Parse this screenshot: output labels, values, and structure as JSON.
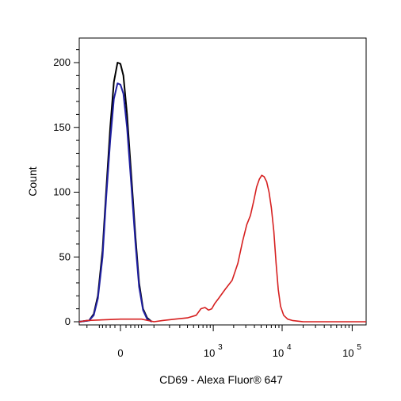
{
  "chart_data": {
    "type": "line",
    "title": "",
    "xlabel": "CD69 - Alexa Fluor® 647",
    "ylabel": "Count",
    "x_scale": "biexponential",
    "x_ticks": [
      {
        "value": 0,
        "base": "0",
        "exp": ""
      },
      {
        "value": 1000,
        "base": "10",
        "exp": "3"
      },
      {
        "value": 10000,
        "base": "10",
        "exp": "4"
      },
      {
        "value": 100000,
        "base": "10",
        "exp": "5"
      }
    ],
    "y_ticks": [
      {
        "value": 0,
        "label": "0"
      },
      {
        "value": 50,
        "label": "50"
      },
      {
        "value": 100,
        "label": "100"
      },
      {
        "value": 150,
        "label": "150"
      },
      {
        "value": 200,
        "label": "200"
      }
    ],
    "ylim": [
      0,
      220
    ],
    "grid": false,
    "legend": "none",
    "colors": {
      "isotype": "#000000",
      "unstained": "#1f1fa0",
      "stained": "#d62020"
    },
    "series": [
      {
        "color": "#000000",
        "points": [
          [
            -150,
            0
          ],
          [
            -90,
            1
          ],
          [
            -70,
            6
          ],
          [
            -55,
            20
          ],
          [
            -40,
            55
          ],
          [
            -30,
            100
          ],
          [
            -20,
            150
          ],
          [
            -12,
            185
          ],
          [
            -5,
            200
          ],
          [
            0,
            199
          ],
          [
            5,
            190
          ],
          [
            12,
            160
          ],
          [
            22,
            110
          ],
          [
            32,
            65
          ],
          [
            42,
            30
          ],
          [
            55,
            10
          ],
          [
            70,
            3
          ],
          [
            90,
            0
          ]
        ]
      },
      {
        "color": "#1f1fa0",
        "points": [
          [
            -150,
            0
          ],
          [
            -90,
            1
          ],
          [
            -70,
            5
          ],
          [
            -55,
            18
          ],
          [
            -40,
            50
          ],
          [
            -30,
            95
          ],
          [
            -20,
            140
          ],
          [
            -12,
            172
          ],
          [
            -5,
            184
          ],
          [
            0,
            183
          ],
          [
            5,
            176
          ],
          [
            12,
            150
          ],
          [
            22,
            103
          ],
          [
            32,
            60
          ],
          [
            42,
            27
          ],
          [
            55,
            9
          ],
          [
            70,
            2
          ],
          [
            90,
            0
          ]
        ]
      },
      {
        "color": "#d62020",
        "points": [
          [
            -200,
            0
          ],
          [
            -100,
            1
          ],
          [
            0,
            2
          ],
          [
            50,
            2
          ],
          [
            100,
            0
          ],
          [
            150,
            1
          ],
          [
            250,
            2
          ],
          [
            400,
            3
          ],
          [
            550,
            5
          ],
          [
            650,
            10
          ],
          [
            750,
            11
          ],
          [
            850,
            9
          ],
          [
            950,
            10
          ],
          [
            1050,
            14
          ],
          [
            1200,
            18
          ],
          [
            1500,
            25
          ],
          [
            1900,
            32
          ],
          [
            2300,
            45
          ],
          [
            2700,
            62
          ],
          [
            3100,
            75
          ],
          [
            3500,
            82
          ],
          [
            3900,
            93
          ],
          [
            4300,
            104
          ],
          [
            4700,
            110
          ],
          [
            5100,
            113
          ],
          [
            5500,
            112
          ],
          [
            6000,
            108
          ],
          [
            6500,
            100
          ],
          [
            7000,
            88
          ],
          [
            7600,
            70
          ],
          [
            8200,
            45
          ],
          [
            8800,
            25
          ],
          [
            9500,
            12
          ],
          [
            10500,
            5
          ],
          [
            12000,
            2
          ],
          [
            14000,
            1
          ],
          [
            20000,
            0
          ],
          [
            100000,
            0
          ],
          [
            200000,
            0
          ]
        ]
      }
    ]
  }
}
